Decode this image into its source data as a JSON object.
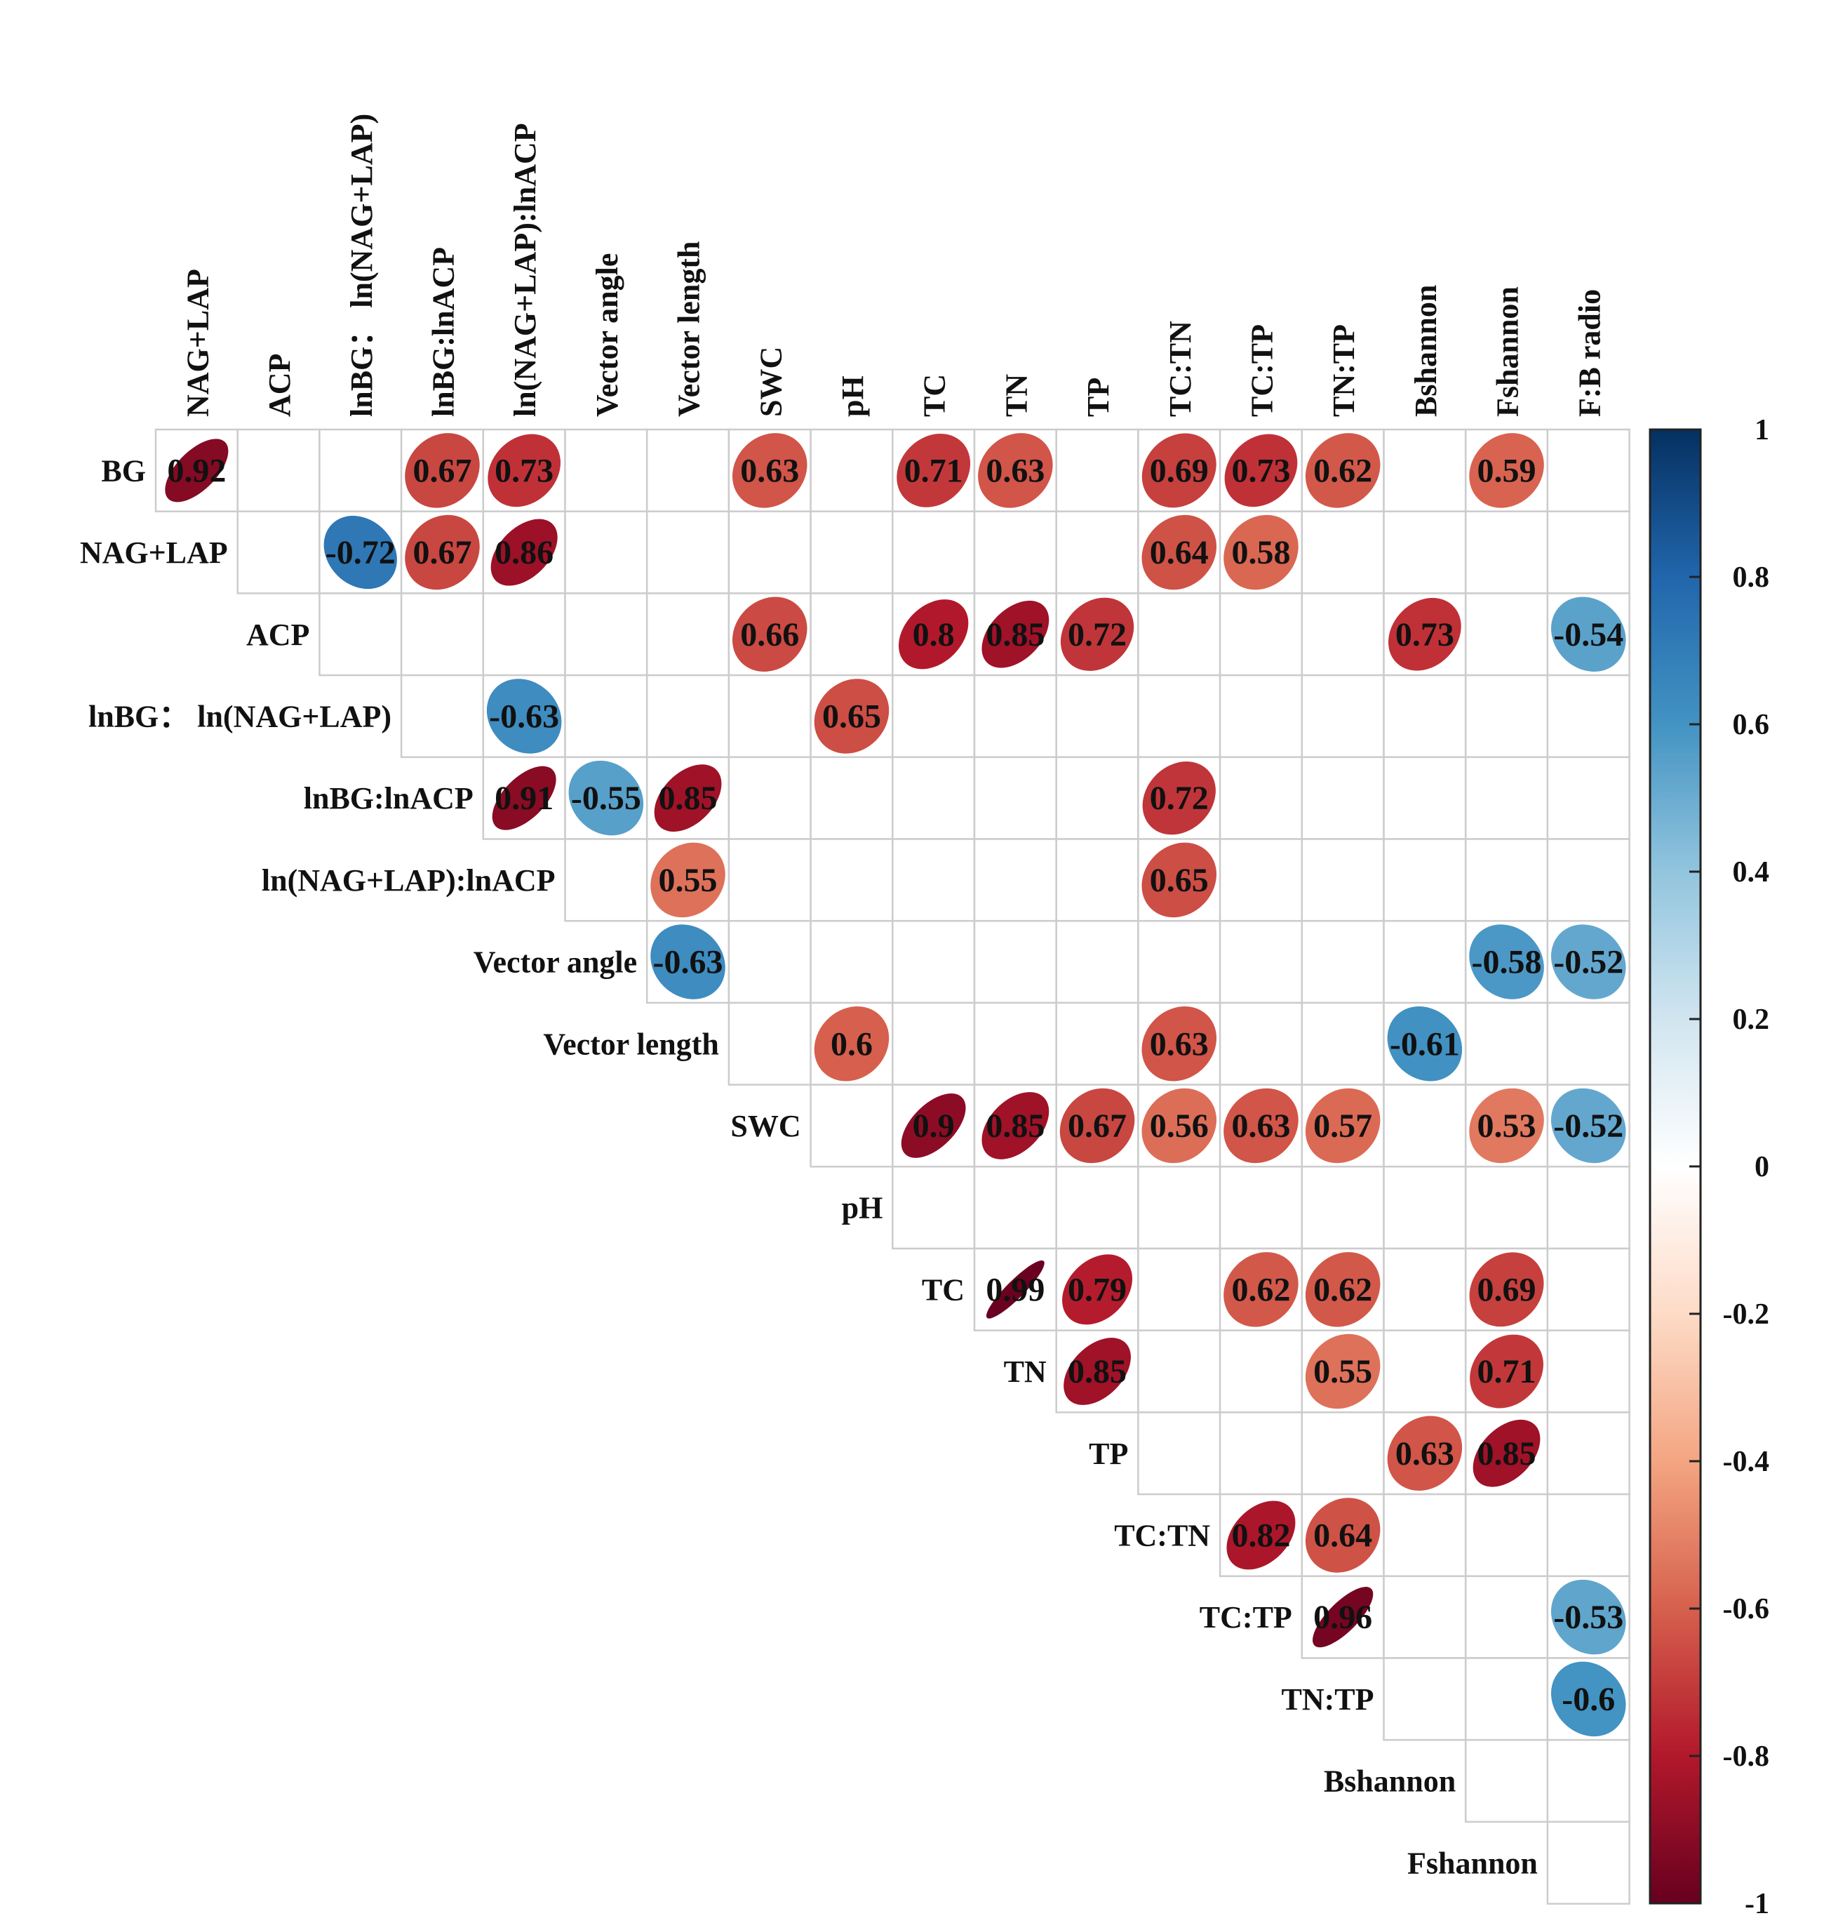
{
  "chart_data": {
    "type": "heatmap",
    "title": "",
    "variables": [
      "BG",
      "NAG+LAP",
      "ACP",
      "lnBG： ln(NAG+LAP)",
      "lnBG:lnACP",
      "ln(NAG+LAP):lnACP",
      "Vector angle",
      "Vector length",
      "SWC",
      "pH",
      "TC",
      "TN",
      "TP",
      "TC:TN",
      "TC:TP",
      "TN:TP",
      "Bshannon",
      "Fshannon",
      "F:B radio"
    ],
    "row_labels": [
      "BG",
      "NAG+LAP",
      "ACP",
      "lnBG： ln(NAG+LAP)",
      "lnBG:lnACP",
      "ln(NAG+LAP):lnACP",
      "Vector angle",
      "Vector length",
      "SWC",
      "pH",
      "TC",
      "TN",
      "TP",
      "TC:TN",
      "TC:TP",
      "TN:TP",
      "Bshannon",
      "Fshannon"
    ],
    "column_labels": [
      "NAG+LAP",
      "ACP",
      "lnBG： ln(NAG+LAP)",
      "lnBG:lnACP",
      "ln(NAG+LAP):lnACP",
      "Vector angle",
      "Vector length",
      "SWC",
      "pH",
      "TC",
      "TN",
      "TP",
      "TC:TN",
      "TC:TP",
      "TN:TP",
      "Bshannon",
      "Fshannon",
      "F:B radio"
    ],
    "layout": "upper-triangle",
    "cells": [
      {
        "row": "BG",
        "col": "NAG+LAP",
        "value": 0.92,
        "label": "0.92"
      },
      {
        "row": "BG",
        "col": "lnBG:lnACP",
        "value": 0.67,
        "label": "0.67"
      },
      {
        "row": "BG",
        "col": "ln(NAG+LAP):lnACP",
        "value": 0.73,
        "label": "0.73"
      },
      {
        "row": "BG",
        "col": "SWC",
        "value": 0.63,
        "label": "0.63"
      },
      {
        "row": "BG",
        "col": "TC",
        "value": 0.71,
        "label": "0.71"
      },
      {
        "row": "BG",
        "col": "TN",
        "value": 0.63,
        "label": "0.63"
      },
      {
        "row": "BG",
        "col": "TC:TN",
        "value": 0.69,
        "label": "0.69"
      },
      {
        "row": "BG",
        "col": "TC:TP",
        "value": 0.73,
        "label": "0.73"
      },
      {
        "row": "BG",
        "col": "TN:TP",
        "value": 0.62,
        "label": "0.62"
      },
      {
        "row": "BG",
        "col": "Fshannon",
        "value": 0.59,
        "label": "0.59"
      },
      {
        "row": "NAG+LAP",
        "col": "lnBG： ln(NAG+LAP)",
        "value": -0.72,
        "label": "-0.72"
      },
      {
        "row": "NAG+LAP",
        "col": "lnBG:lnACP",
        "value": 0.67,
        "label": "0.67"
      },
      {
        "row": "NAG+LAP",
        "col": "ln(NAG+LAP):lnACP",
        "value": 0.86,
        "label": "0.86"
      },
      {
        "row": "NAG+LAP",
        "col": "TC:TN",
        "value": 0.64,
        "label": "0.64"
      },
      {
        "row": "NAG+LAP",
        "col": "TC:TP",
        "value": 0.58,
        "label": "0.58"
      },
      {
        "row": "ACP",
        "col": "SWC",
        "value": 0.66,
        "label": "0.66"
      },
      {
        "row": "ACP",
        "col": "TC",
        "value": 0.8,
        "label": "0.8"
      },
      {
        "row": "ACP",
        "col": "TN",
        "value": 0.85,
        "label": "0.85"
      },
      {
        "row": "ACP",
        "col": "TP",
        "value": 0.72,
        "label": "0.72"
      },
      {
        "row": "ACP",
        "col": "Bshannon",
        "value": 0.73,
        "label": "0.73"
      },
      {
        "row": "ACP",
        "col": "F:B radio",
        "value": -0.54,
        "label": "-0.54"
      },
      {
        "row": "lnBG： ln(NAG+LAP)",
        "col": "ln(NAG+LAP):lnACP",
        "value": -0.63,
        "label": "-0.63"
      },
      {
        "row": "lnBG： ln(NAG+LAP)",
        "col": "pH",
        "value": 0.65,
        "label": "0.65"
      },
      {
        "row": "lnBG:lnACP",
        "col": "ln(NAG+LAP):lnACP",
        "value": 0.91,
        "label": "0.91"
      },
      {
        "row": "lnBG:lnACP",
        "col": "Vector angle",
        "value": -0.55,
        "label": "-0.55"
      },
      {
        "row": "lnBG:lnACP",
        "col": "Vector length",
        "value": 0.85,
        "label": "0.85"
      },
      {
        "row": "lnBG:lnACP",
        "col": "TC:TN",
        "value": 0.72,
        "label": "0.72"
      },
      {
        "row": "ln(NAG+LAP):lnACP",
        "col": "Vector length",
        "value": 0.55,
        "label": "0.55"
      },
      {
        "row": "ln(NAG+LAP):lnACP",
        "col": "TC:TN",
        "value": 0.65,
        "label": "0.65"
      },
      {
        "row": "Vector angle",
        "col": "Vector length",
        "value": -0.63,
        "label": "-0.63"
      },
      {
        "row": "Vector angle",
        "col": "Fshannon",
        "value": -0.58,
        "label": "-0.58"
      },
      {
        "row": "Vector angle",
        "col": "F:B radio",
        "value": -0.52,
        "label": "-0.52"
      },
      {
        "row": "Vector length",
        "col": "pH",
        "value": 0.6,
        "label": "0.6"
      },
      {
        "row": "Vector length",
        "col": "TC:TN",
        "value": 0.63,
        "label": "0.63"
      },
      {
        "row": "Vector length",
        "col": "Bshannon",
        "value": -0.61,
        "label": "-0.61"
      },
      {
        "row": "SWC",
        "col": "TC",
        "value": 0.9,
        "label": "0.9"
      },
      {
        "row": "SWC",
        "col": "TN",
        "value": 0.85,
        "label": "0.85"
      },
      {
        "row": "SWC",
        "col": "TP",
        "value": 0.67,
        "label": "0.67"
      },
      {
        "row": "SWC",
        "col": "TC:TN",
        "value": 0.56,
        "label": "0.56"
      },
      {
        "row": "SWC",
        "col": "TC:TP",
        "value": 0.63,
        "label": "0.63"
      },
      {
        "row": "SWC",
        "col": "TN:TP",
        "value": 0.57,
        "label": "0.57"
      },
      {
        "row": "SWC",
        "col": "Fshannon",
        "value": 0.53,
        "label": "0.53"
      },
      {
        "row": "SWC",
        "col": "F:B radio",
        "value": -0.52,
        "label": "-0.52"
      },
      {
        "row": "TC",
        "col": "TN",
        "value": 0.99,
        "label": "0.99"
      },
      {
        "row": "TC",
        "col": "TP",
        "value": 0.79,
        "label": "0.79"
      },
      {
        "row": "TC",
        "col": "TC:TP",
        "value": 0.62,
        "label": "0.62"
      },
      {
        "row": "TC",
        "col": "TN:TP",
        "value": 0.62,
        "label": "0.62"
      },
      {
        "row": "TC",
        "col": "Fshannon",
        "value": 0.69,
        "label": "0.69"
      },
      {
        "row": "TN",
        "col": "TP",
        "value": 0.85,
        "label": "0.85"
      },
      {
        "row": "TN",
        "col": "TN:TP",
        "value": 0.55,
        "label": "0.55"
      },
      {
        "row": "TN",
        "col": "Fshannon",
        "value": 0.71,
        "label": "0.71"
      },
      {
        "row": "TP",
        "col": "Bshannon",
        "value": 0.63,
        "label": "0.63"
      },
      {
        "row": "TP",
        "col": "Fshannon",
        "value": 0.85,
        "label": "0.85"
      },
      {
        "row": "TC:TN",
        "col": "TC:TP",
        "value": 0.82,
        "label": "0.82"
      },
      {
        "row": "TC:TN",
        "col": "TN:TP",
        "value": 0.64,
        "label": "0.64"
      },
      {
        "row": "TC:TP",
        "col": "TN:TP",
        "value": 0.96,
        "label": "0.96"
      },
      {
        "row": "TC:TP",
        "col": "F:B radio",
        "value": -0.53,
        "label": "-0.53"
      },
      {
        "row": "TN:TP",
        "col": "F:B radio",
        "value": -0.6,
        "label": "-0.6"
      }
    ],
    "color_scale": {
      "range": [
        -1,
        1
      ],
      "ticks": [
        "1",
        "0.8",
        "0.6",
        "0.4",
        "0.2",
        "0",
        "-0.2",
        "-0.4",
        "-0.6",
        "-0.8",
        "-1"
      ],
      "tick_values": [
        1,
        0.8,
        0.6,
        0.4,
        0.2,
        0,
        -0.2,
        -0.4,
        -0.6,
        -0.8,
        -1
      ],
      "colors": [
        "#67001F",
        "#B2182B",
        "#D6604D",
        "#F4A582",
        "#FDDBC7",
        "#FFFFFF",
        "#D1E5F0",
        "#92C5DE",
        "#4393C3",
        "#2166AC",
        "#053061"
      ],
      "legend_position": "right"
    },
    "grid": true
  }
}
